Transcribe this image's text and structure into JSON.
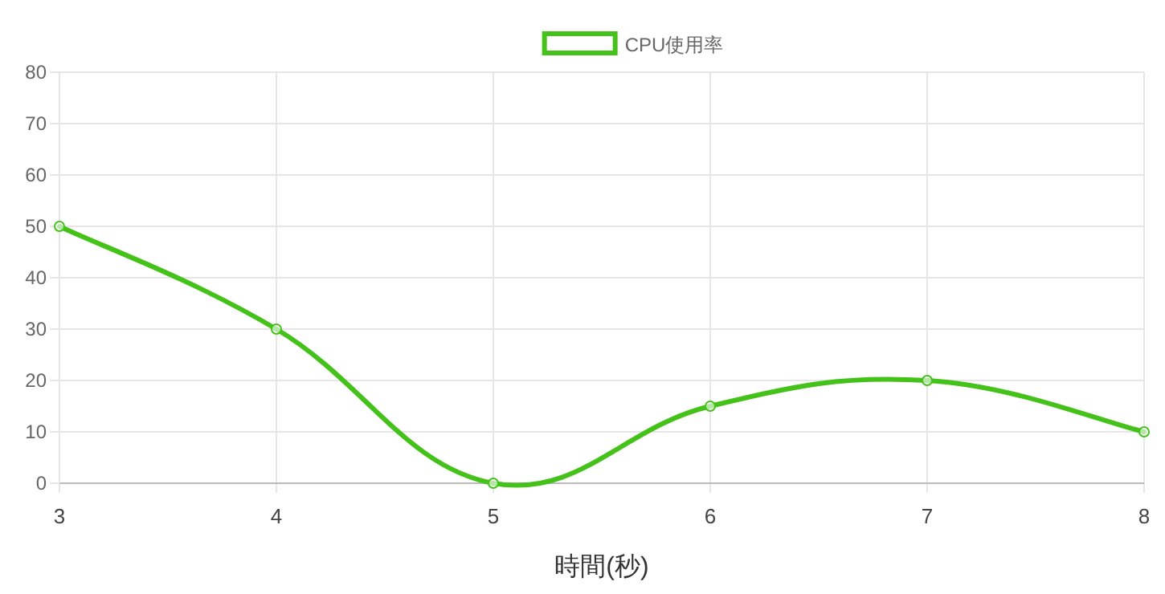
{
  "chart_data": {
    "type": "line",
    "xlabel": "時間(秒)",
    "x": [
      3,
      4,
      5,
      6,
      7,
      8
    ],
    "series": [
      {
        "name": "CPU使用率",
        "color": "#44c21a",
        "values": [
          50,
          30,
          0,
          15,
          20,
          10
        ]
      }
    ],
    "xlim": [
      3,
      8
    ],
    "xticks": [
      3,
      4,
      5,
      6,
      7,
      8
    ],
    "ylim": [
      0,
      80
    ],
    "yticks": [
      0,
      10,
      20,
      30,
      40,
      50,
      60,
      70,
      80
    ],
    "grid": true,
    "legend": "top",
    "marker": "circle",
    "line_style": "solid"
  }
}
